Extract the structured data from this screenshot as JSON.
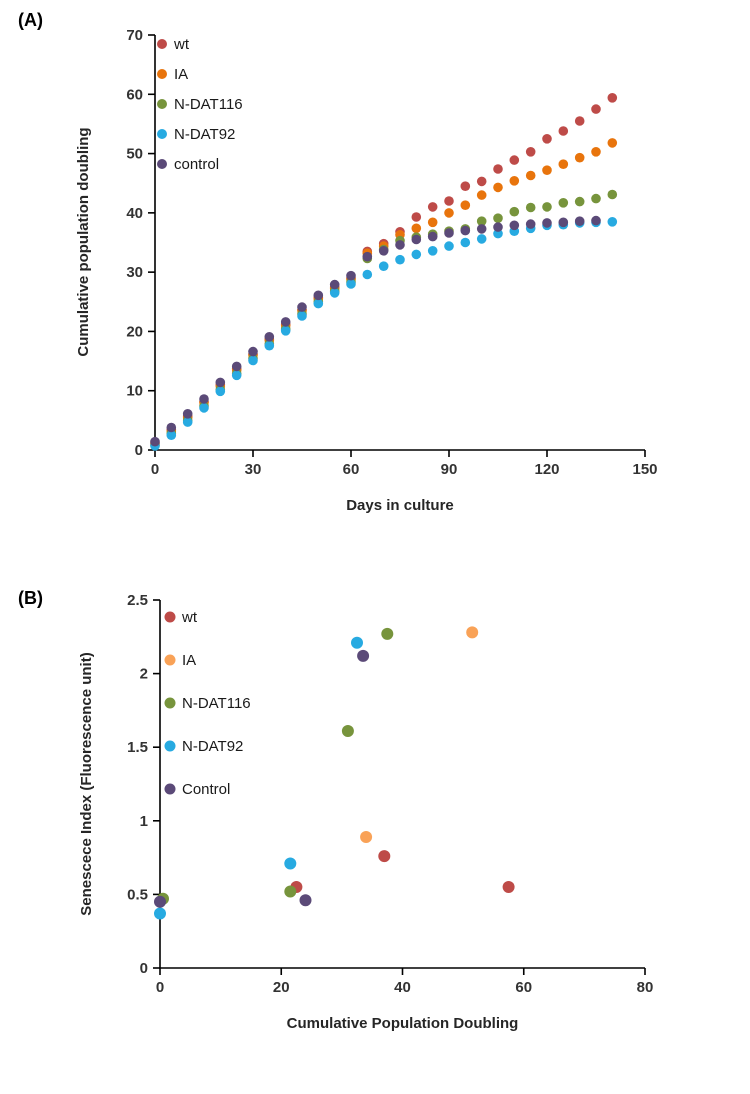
{
  "page": {
    "background": "#ffffff"
  },
  "chart_data": [
    {
      "id": "panel-a",
      "type": "scatter",
      "panel_label": "(A)",
      "title": "",
      "xlabel": "Days in culture",
      "ylabel": "Cumulative population doubling",
      "xlim": [
        0,
        150
      ],
      "ylim": [
        0,
        70
      ],
      "xticks": [
        0,
        30,
        60,
        90,
        120,
        150
      ],
      "xtick_labels": [
        "0",
        "30",
        "60",
        "90",
        "120",
        "150"
      ],
      "yticks": [
        0,
        10,
        20,
        30,
        40,
        50,
        60,
        70
      ],
      "ytick_labels": [
        "0",
        "10",
        "20",
        "30",
        "40",
        "50",
        "60",
        "70"
      ],
      "grid": false,
      "legend_position": "top-left",
      "series": [
        {
          "name": "wt",
          "color": "#BE4B48",
          "points": [
            [
              0,
              1.2
            ],
            [
              5,
              3.4
            ],
            [
              10,
              5.7
            ],
            [
              15,
              8.2
            ],
            [
              20,
              11.0
            ],
            [
              25,
              13.7
            ],
            [
              30,
              16.2
            ],
            [
              35,
              18.7
            ],
            [
              40,
              21.2
            ],
            [
              45,
              23.7
            ],
            [
              50,
              25.7
            ],
            [
              55,
              27.5
            ],
            [
              60,
              29.0
            ],
            [
              65,
              33.5
            ],
            [
              70,
              34.8
            ],
            [
              75,
              36.8
            ],
            [
              80,
              39.3
            ],
            [
              85,
              41.0
            ],
            [
              90,
              42.0
            ],
            [
              95,
              44.5
            ],
            [
              100,
              45.3
            ],
            [
              105,
              47.4
            ],
            [
              110,
              48.9
            ],
            [
              115,
              50.3
            ],
            [
              120,
              52.5
            ],
            [
              125,
              53.8
            ],
            [
              130,
              55.5
            ],
            [
              135,
              57.5
            ],
            [
              140,
              59.4
            ]
          ]
        },
        {
          "name": "IA",
          "color": "#E8740C",
          "points": [
            [
              0,
              1.0
            ],
            [
              5,
              3.2
            ],
            [
              10,
              5.5
            ],
            [
              15,
              8.0
            ],
            [
              20,
              10.8
            ],
            [
              25,
              13.5
            ],
            [
              30,
              16.0
            ],
            [
              35,
              18.5
            ],
            [
              40,
              21.0
            ],
            [
              45,
              23.5
            ],
            [
              50,
              25.5
            ],
            [
              55,
              27.3
            ],
            [
              60,
              28.8
            ],
            [
              65,
              33.2
            ],
            [
              70,
              34.4
            ],
            [
              75,
              36.3
            ],
            [
              80,
              37.4
            ],
            [
              85,
              38.4
            ],
            [
              90,
              40.0
            ],
            [
              95,
              41.3
            ],
            [
              100,
              43.0
            ],
            [
              105,
              44.3
            ],
            [
              110,
              45.4
            ],
            [
              115,
              46.3
            ],
            [
              120,
              47.2
            ],
            [
              125,
              48.2
            ],
            [
              130,
              49.3
            ],
            [
              135,
              50.3
            ],
            [
              140,
              51.8
            ]
          ]
        },
        {
          "name": "N-DAT116",
          "color": "#77943C",
          "points": [
            [
              0,
              0.8
            ],
            [
              5,
              2.8
            ],
            [
              10,
              5.0
            ],
            [
              15,
              7.4
            ],
            [
              20,
              10.2
            ],
            [
              25,
              12.9
            ],
            [
              30,
              15.4
            ],
            [
              35,
              17.9
            ],
            [
              40,
              20.4
            ],
            [
              45,
              22.9
            ],
            [
              50,
              25.0
            ],
            [
              55,
              26.8
            ],
            [
              60,
              28.3
            ],
            [
              65,
              32.3
            ],
            [
              70,
              33.8
            ],
            [
              75,
              35.3
            ],
            [
              80,
              35.9
            ],
            [
              85,
              36.4
            ],
            [
              90,
              36.9
            ],
            [
              95,
              37.3
            ],
            [
              100,
              38.6
            ],
            [
              105,
              39.1
            ],
            [
              110,
              40.2
            ],
            [
              115,
              40.9
            ],
            [
              120,
              41.0
            ],
            [
              125,
              41.7
            ],
            [
              130,
              41.9
            ],
            [
              135,
              42.4
            ],
            [
              140,
              43.1
            ]
          ]
        },
        {
          "name": "N-DAT92",
          "color": "#27AAE1",
          "points": [
            [
              0,
              0.7
            ],
            [
              5,
              2.5
            ],
            [
              10,
              4.7
            ],
            [
              15,
              7.1
            ],
            [
              20,
              9.9
            ],
            [
              25,
              12.6
            ],
            [
              30,
              15.1
            ],
            [
              35,
              17.6
            ],
            [
              40,
              20.1
            ],
            [
              45,
              22.6
            ],
            [
              50,
              24.7
            ],
            [
              55,
              26.5
            ],
            [
              60,
              28.0
            ],
            [
              65,
              29.6
            ],
            [
              70,
              31.0
            ],
            [
              75,
              32.1
            ],
            [
              80,
              33.0
            ],
            [
              85,
              33.6
            ],
            [
              90,
              34.4
            ],
            [
              95,
              35.0
            ],
            [
              100,
              35.6
            ],
            [
              105,
              36.5
            ],
            [
              110,
              36.9
            ],
            [
              115,
              37.4
            ],
            [
              120,
              37.9
            ],
            [
              125,
              38.0
            ],
            [
              130,
              38.3
            ],
            [
              135,
              38.4
            ],
            [
              140,
              38.5
            ]
          ]
        },
        {
          "name": "control",
          "color": "#5B4A78",
          "points": [
            [
              0,
              1.4
            ],
            [
              5,
              3.8
            ],
            [
              10,
              6.1
            ],
            [
              15,
              8.6
            ],
            [
              20,
              11.4
            ],
            [
              25,
              14.1
            ],
            [
              30,
              16.6
            ],
            [
              35,
              19.1
            ],
            [
              40,
              21.6
            ],
            [
              45,
              24.1
            ],
            [
              50,
              26.1
            ],
            [
              55,
              27.9
            ],
            [
              60,
              29.4
            ],
            [
              65,
              32.6
            ],
            [
              70,
              33.6
            ],
            [
              75,
              34.6
            ],
            [
              80,
              35.5
            ],
            [
              85,
              36.0
            ],
            [
              90,
              36.6
            ],
            [
              95,
              37.0
            ],
            [
              100,
              37.3
            ],
            [
              105,
              37.6
            ],
            [
              110,
              37.9
            ],
            [
              115,
              38.1
            ],
            [
              120,
              38.3
            ],
            [
              125,
              38.4
            ],
            [
              130,
              38.6
            ],
            [
              135,
              38.7
            ]
          ]
        }
      ]
    },
    {
      "id": "panel-b",
      "type": "scatter",
      "panel_label": "(B)",
      "title": "",
      "xlabel": "Cumulative Population Doubling",
      "ylabel": "Senescece  Index (Fluorescence unit)",
      "xlim": [
        0,
        80
      ],
      "ylim": [
        0,
        2.5
      ],
      "xticks": [
        0,
        20,
        40,
        60,
        80
      ],
      "xtick_labels": [
        "0",
        "20",
        "40",
        "60",
        "80"
      ],
      "yticks": [
        0,
        0.5,
        1,
        1.5,
        2,
        2.5
      ],
      "ytick_labels": [
        "0",
        "0.5",
        "1",
        "1.5",
        "2",
        "2.5"
      ],
      "grid": false,
      "legend_position": "top-left",
      "series": [
        {
          "name": "wt",
          "color": "#BE4B48",
          "points": [
            [
              22.5,
              0.55
            ],
            [
              37,
              0.76
            ],
            [
              57.5,
              0.55
            ]
          ]
        },
        {
          "name": "IA",
          "color": "#F9A257",
          "points": [
            [
              34,
              0.89
            ],
            [
              51.5,
              2.28
            ]
          ]
        },
        {
          "name": "N-DAT116",
          "color": "#77943C",
          "points": [
            [
              0.5,
              0.47
            ],
            [
              21.5,
              0.52
            ],
            [
              31,
              1.61
            ],
            [
              37.5,
              2.27
            ]
          ]
        },
        {
          "name": "N-DAT92",
          "color": "#27AAE1",
          "points": [
            [
              0,
              0.37
            ],
            [
              21.5,
              0.71
            ],
            [
              32.5,
              2.21
            ]
          ]
        },
        {
          "name": "Control",
          "color": "#5B4A78",
          "points": [
            [
              0,
              0.45
            ],
            [
              24,
              0.46
            ],
            [
              33.5,
              2.12
            ]
          ]
        }
      ]
    }
  ]
}
